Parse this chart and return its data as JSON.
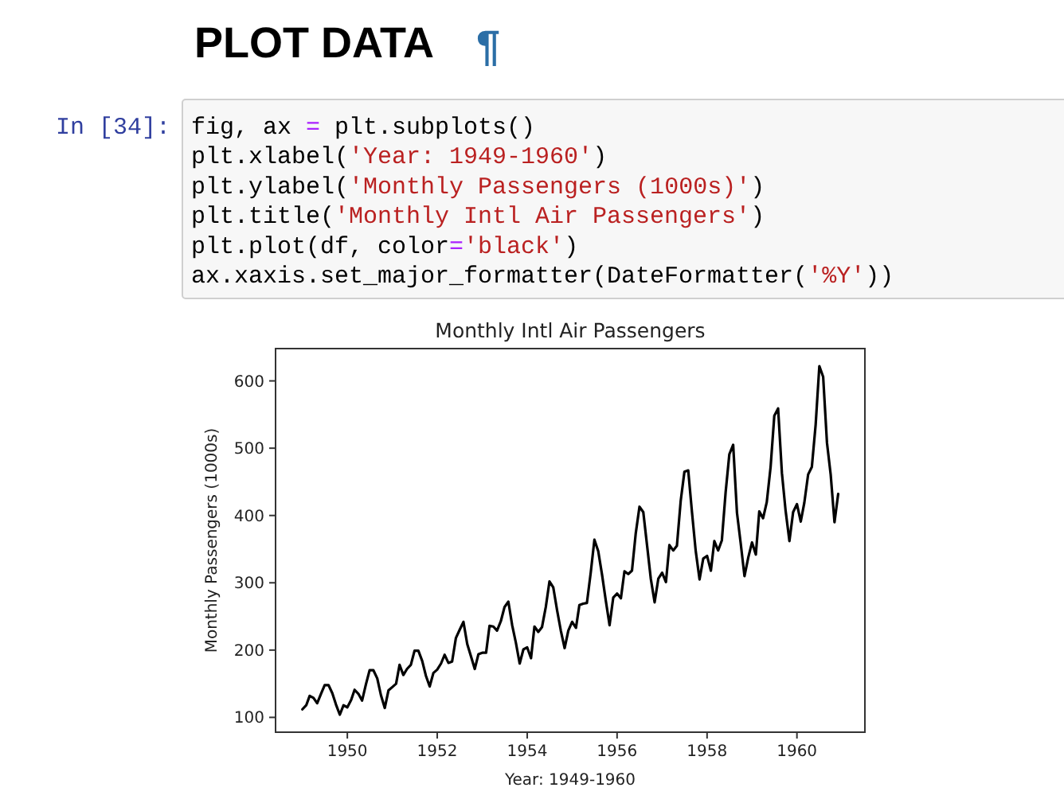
{
  "chart_data": {
    "type": "line",
    "title": "Monthly Intl Air Passengers",
    "xlabel": "Year: 1949-1960",
    "ylabel": "Monthly Passengers (1000s)",
    "annotations": [
      "PLOT DATA",
      "¶",
      "In [34]:",
      "fig, ax = plt.subplots()\nplt.xlabel('Year: 1949-1960')\nplt.ylabel('Monthly Passengers (1000s)')\nplt.title('Monthly Intl Air Passengers')\nplt.plot(df, color='black')\nax.xaxis.set_major_formatter(DateFormatter('%Y'))"
    ],
    "x": [
      "1949-01",
      "1949-02",
      "1949-03",
      "1949-04",
      "1949-05",
      "1949-06",
      "1949-07",
      "1949-08",
      "1949-09",
      "1949-10",
      "1949-11",
      "1949-12",
      "1950-01",
      "1950-02",
      "1950-03",
      "1950-04",
      "1950-05",
      "1950-06",
      "1950-07",
      "1950-08",
      "1950-09",
      "1950-10",
      "1950-11",
      "1950-12",
      "1951-01",
      "1951-02",
      "1951-03",
      "1951-04",
      "1951-05",
      "1951-06",
      "1951-07",
      "1951-08",
      "1951-09",
      "1951-10",
      "1951-11",
      "1951-12",
      "1952-01",
      "1952-02",
      "1952-03",
      "1952-04",
      "1952-05",
      "1952-06",
      "1952-07",
      "1952-08",
      "1952-09",
      "1952-10",
      "1952-11",
      "1952-12",
      "1953-01",
      "1953-02",
      "1953-03",
      "1953-04",
      "1953-05",
      "1953-06",
      "1953-07",
      "1953-08",
      "1953-09",
      "1953-10",
      "1953-11",
      "1953-12",
      "1954-01",
      "1954-02",
      "1954-03",
      "1954-04",
      "1954-05",
      "1954-06",
      "1954-07",
      "1954-08",
      "1954-09",
      "1954-10",
      "1954-11",
      "1954-12",
      "1955-01",
      "1955-02",
      "1955-03",
      "1955-04",
      "1955-05",
      "1955-06",
      "1955-07",
      "1955-08",
      "1955-09",
      "1955-10",
      "1955-11",
      "1955-12",
      "1956-01",
      "1956-02",
      "1956-03",
      "1956-04",
      "1956-05",
      "1956-06",
      "1956-07",
      "1956-08",
      "1956-09",
      "1956-10",
      "1956-11",
      "1956-12",
      "1957-01",
      "1957-02",
      "1957-03",
      "1957-04",
      "1957-05",
      "1957-06",
      "1957-07",
      "1957-08",
      "1957-09",
      "1957-10",
      "1957-11",
      "1957-12",
      "1958-01",
      "1958-02",
      "1958-03",
      "1958-04",
      "1958-05",
      "1958-06",
      "1958-07",
      "1958-08",
      "1958-09",
      "1958-10",
      "1958-11",
      "1958-12",
      "1959-01",
      "1959-02",
      "1959-03",
      "1959-04",
      "1959-05",
      "1959-06",
      "1959-07",
      "1959-08",
      "1959-09",
      "1959-10",
      "1959-11",
      "1959-12",
      "1960-01",
      "1960-02",
      "1960-03",
      "1960-04",
      "1960-05",
      "1960-06",
      "1960-07",
      "1960-08",
      "1960-09",
      "1960-10",
      "1960-11",
      "1960-12"
    ],
    "series": [
      {
        "color": "#000000",
        "values": [
          112,
          118,
          132,
          129,
          121,
          135,
          148,
          148,
          136,
          119,
          104,
          118,
          115,
          126,
          141,
          135,
          125,
          149,
          170,
          170,
          158,
          133,
          114,
          140,
          145,
          150,
          178,
          163,
          172,
          178,
          199,
          199,
          184,
          162,
          146,
          166,
          171,
          180,
          193,
          181,
          183,
          218,
          230,
          242,
          209,
          191,
          172,
          194,
          196,
          196,
          236,
          235,
          229,
          243,
          264,
          272,
          237,
          211,
          180,
          201,
          204,
          188,
          235,
          227,
          234,
          264,
          302,
          293,
          259,
          229,
          203,
          229,
          242,
          233,
          267,
          269,
          270,
          315,
          364,
          347,
          312,
          274,
          237,
          278,
          284,
          277,
          317,
          313,
          318,
          374,
          413,
          405,
          355,
          306,
          271,
          306,
          315,
          301,
          356,
          348,
          355,
          422,
          465,
          467,
          404,
          347,
          305,
          336,
          340,
          318,
          362,
          348,
          363,
          435,
          491,
          505,
          404,
          359,
          310,
          337,
          360,
          342,
          406,
          396,
          420,
          472,
          548,
          559,
          463,
          407,
          362,
          405,
          417,
          391,
          419,
          461,
          472,
          535,
          622,
          606,
          508,
          461,
          390,
          432
        ]
      }
    ],
    "xlim": [
      "1948-05-28",
      "1961-07-06"
    ],
    "xticks": [
      "1950",
      "1952",
      "1954",
      "1956",
      "1958",
      "1960"
    ],
    "ylim": [
      78,
      648
    ],
    "yticks": [
      100,
      200,
      300,
      400,
      500,
      600
    ],
    "grid": false,
    "marker": "none",
    "line_style": "solid"
  }
}
